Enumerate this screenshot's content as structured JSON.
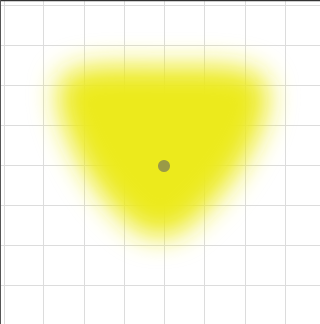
{
  "canvas": {
    "background_color": "#ffffff",
    "grid_line_color": "#dcdcdc",
    "top_border_color": "#333333",
    "left_border_color": "#555555"
  },
  "blob": {
    "shape": "rounded-triangle",
    "fill_color": "#ecea1a",
    "edge": "soft-feathered"
  },
  "marker": {
    "icon": "center-point-icon",
    "color": "#9a9a46"
  }
}
